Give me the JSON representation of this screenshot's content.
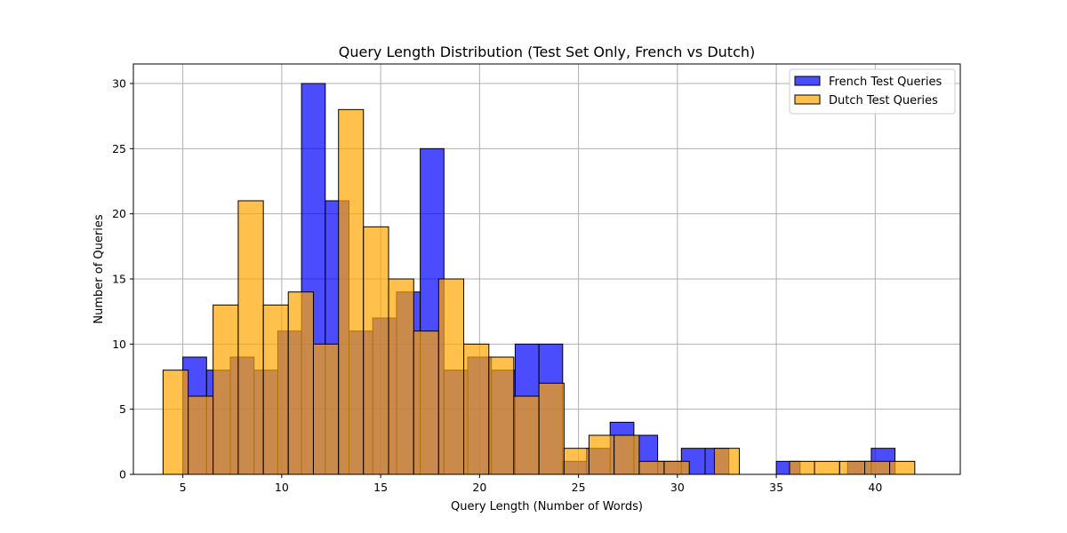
{
  "chart_data": {
    "type": "bar",
    "title": "Query Length Distribution (Test Set Only, French vs Dutch)",
    "xlabel": "Query Length (Number of Words)",
    "ylabel": "Number of Queries",
    "xlim": [
      2.5,
      44.3
    ],
    "ylim": [
      0,
      31.5
    ],
    "xticks": [
      5,
      10,
      15,
      20,
      25,
      30,
      35,
      40
    ],
    "yticks": [
      0,
      5,
      10,
      15,
      20,
      25,
      30
    ],
    "grid": true,
    "legend_position": "top-right",
    "series": [
      {
        "name": "French Test Queries",
        "color": "#0000ff",
        "alpha": 0.7,
        "bins": [
          {
            "x0": 5.0,
            "x1": 6.2,
            "value": 9
          },
          {
            "x0": 6.2,
            "x1": 7.4,
            "value": 8
          },
          {
            "x0": 7.4,
            "x1": 8.6,
            "value": 9
          },
          {
            "x0": 8.6,
            "x1": 9.8,
            "value": 8
          },
          {
            "x0": 9.8,
            "x1": 11.0,
            "value": 11
          },
          {
            "x0": 11.0,
            "x1": 12.2,
            "value": 30
          },
          {
            "x0": 12.2,
            "x1": 13.4,
            "value": 21
          },
          {
            "x0": 13.4,
            "x1": 14.6,
            "value": 11
          },
          {
            "x0": 14.6,
            "x1": 15.8,
            "value": 12
          },
          {
            "x0": 15.8,
            "x1": 17.0,
            "value": 14
          },
          {
            "x0": 17.0,
            "x1": 18.2,
            "value": 25
          },
          {
            "x0": 18.2,
            "x1": 19.4,
            "value": 8
          },
          {
            "x0": 19.4,
            "x1": 20.6,
            "value": 9
          },
          {
            "x0": 20.6,
            "x1": 21.8,
            "value": 8
          },
          {
            "x0": 21.8,
            "x1": 23.0,
            "value": 10
          },
          {
            "x0": 23.0,
            "x1": 24.2,
            "value": 10
          },
          {
            "x0": 24.2,
            "x1": 25.4,
            "value": 1
          },
          {
            "x0": 25.4,
            "x1": 26.6,
            "value": 2
          },
          {
            "x0": 26.6,
            "x1": 27.8,
            "value": 4
          },
          {
            "x0": 27.8,
            "x1": 29.0,
            "value": 3
          },
          {
            "x0": 29.0,
            "x1": 30.2,
            "value": 1
          },
          {
            "x0": 30.2,
            "x1": 31.4,
            "value": 2
          },
          {
            "x0": 31.4,
            "x1": 32.6,
            "value": 2
          },
          {
            "x0": 32.6,
            "x1": 33.8,
            "value": 0
          },
          {
            "x0": 33.8,
            "x1": 35.0,
            "value": 0
          },
          {
            "x0": 35.0,
            "x1": 36.2,
            "value": 1
          },
          {
            "x0": 36.2,
            "x1": 37.4,
            "value": 0
          },
          {
            "x0": 37.4,
            "x1": 38.6,
            "value": 0
          },
          {
            "x0": 38.6,
            "x1": 39.8,
            "value": 1
          },
          {
            "x0": 39.8,
            "x1": 41.0,
            "value": 2
          }
        ]
      },
      {
        "name": "Dutch Test Queries",
        "color": "#ffa500",
        "alpha": 0.7,
        "bins": [
          {
            "x0": 4.0,
            "x1": 5.27,
            "value": 8
          },
          {
            "x0": 5.27,
            "x1": 6.53,
            "value": 6
          },
          {
            "x0": 6.53,
            "x1": 7.8,
            "value": 13
          },
          {
            "x0": 7.8,
            "x1": 9.07,
            "value": 21
          },
          {
            "x0": 9.07,
            "x1": 10.33,
            "value": 13
          },
          {
            "x0": 10.33,
            "x1": 11.6,
            "value": 14
          },
          {
            "x0": 11.6,
            "x1": 12.87,
            "value": 10
          },
          {
            "x0": 12.87,
            "x1": 14.13,
            "value": 28
          },
          {
            "x0": 14.13,
            "x1": 15.4,
            "value": 19
          },
          {
            "x0": 15.4,
            "x1": 16.67,
            "value": 15
          },
          {
            "x0": 16.67,
            "x1": 17.93,
            "value": 11
          },
          {
            "x0": 17.93,
            "x1": 19.2,
            "value": 15
          },
          {
            "x0": 19.2,
            "x1": 20.47,
            "value": 10
          },
          {
            "x0": 20.47,
            "x1": 21.73,
            "value": 9
          },
          {
            "x0": 21.73,
            "x1": 23.0,
            "value": 6
          },
          {
            "x0": 23.0,
            "x1": 24.27,
            "value": 7
          },
          {
            "x0": 24.27,
            "x1": 25.53,
            "value": 2
          },
          {
            "x0": 25.53,
            "x1": 26.8,
            "value": 3
          },
          {
            "x0": 26.8,
            "x1": 28.07,
            "value": 3
          },
          {
            "x0": 28.07,
            "x1": 29.33,
            "value": 1
          },
          {
            "x0": 29.33,
            "x1": 30.6,
            "value": 1
          },
          {
            "x0": 30.6,
            "x1": 31.87,
            "value": 0
          },
          {
            "x0": 31.87,
            "x1": 33.13,
            "value": 2
          },
          {
            "x0": 33.13,
            "x1": 34.4,
            "value": 0
          },
          {
            "x0": 34.4,
            "x1": 35.67,
            "value": 0
          },
          {
            "x0": 35.67,
            "x1": 36.93,
            "value": 1
          },
          {
            "x0": 36.93,
            "x1": 38.2,
            "value": 1
          },
          {
            "x0": 38.2,
            "x1": 39.47,
            "value": 1
          },
          {
            "x0": 39.47,
            "x1": 40.73,
            "value": 1
          },
          {
            "x0": 40.73,
            "x1": 42.0,
            "value": 1
          }
        ]
      }
    ]
  }
}
